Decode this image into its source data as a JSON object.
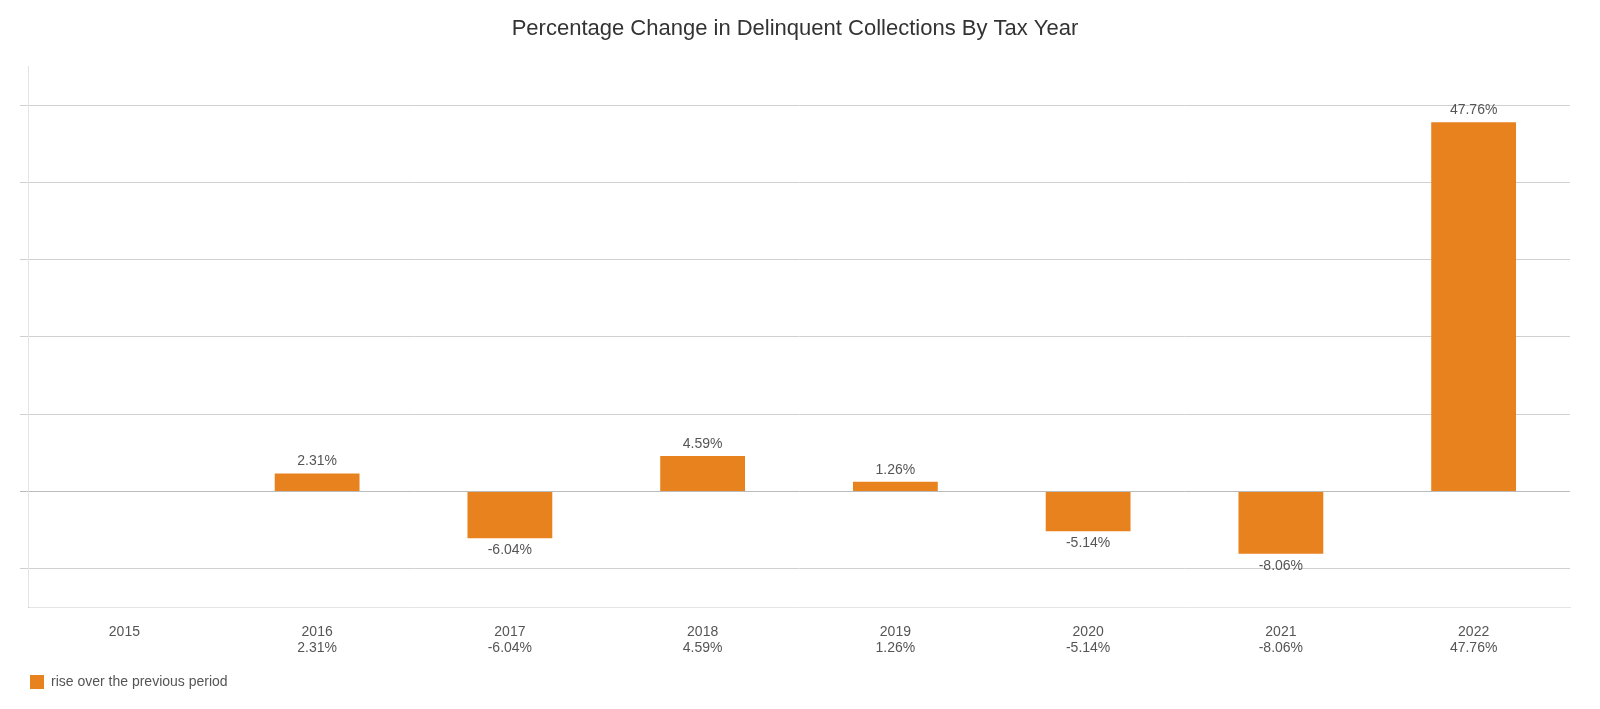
{
  "chart_data": {
    "type": "bar",
    "title": "Percentage Change in Delinquent Collections By Tax Year",
    "categories": [
      "2015",
      "2016",
      "2017",
      "2018",
      "2019",
      "2020",
      "2021",
      "2022"
    ],
    "series": [
      {
        "name": "rise over the previous period",
        "color": "#E8821E",
        "values": [
          0,
          2.31,
          -6.04,
          4.59,
          1.26,
          -5.14,
          -8.06,
          47.76
        ],
        "value_labels": [
          null,
          "2.31%",
          "-6.04%",
          "4.59%",
          "1.26%",
          "-5.14%",
          "-8.06%",
          "47.76%"
        ]
      }
    ],
    "ylim": [
      -15,
      55
    ],
    "yticks": [
      -10,
      0,
      10,
      20,
      30,
      40,
      50
    ],
    "grid": true,
    "legend": "lower left",
    "data_labels": true,
    "tick_labels": "x"
  }
}
